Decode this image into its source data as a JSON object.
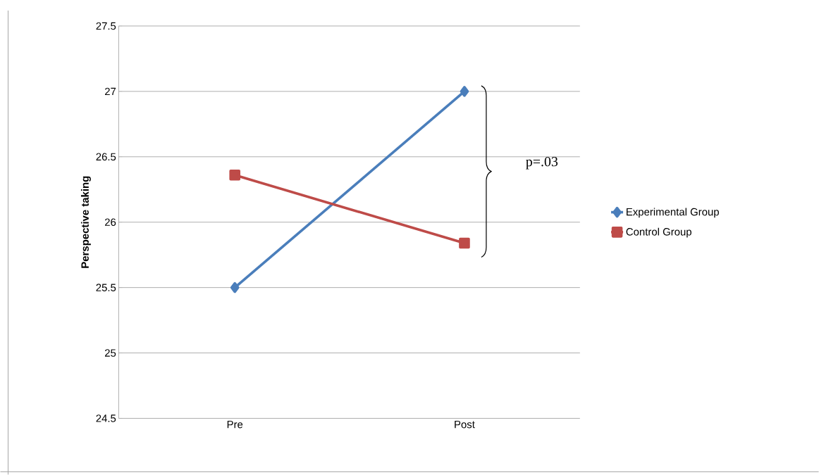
{
  "chart_data": {
    "type": "line",
    "ylabel": "Perspective taking",
    "categories": [
      "Pre",
      "Post"
    ],
    "series": [
      {
        "name": "Experimental Group",
        "color": "#4a7ebb",
        "marker": "diamond",
        "values": [
          25.5,
          27
        ]
      },
      {
        "name": "Control Group",
        "color": "#be4b48",
        "marker": "square",
        "values": [
          26.36,
          25.84
        ]
      }
    ],
    "ylim": [
      24.5,
      27.5
    ],
    "yticks": [
      24.5,
      25,
      25.5,
      26,
      26.5,
      27,
      27.5
    ],
    "grid": "y",
    "legend": "right",
    "annotations": [
      "p=.03"
    ]
  }
}
